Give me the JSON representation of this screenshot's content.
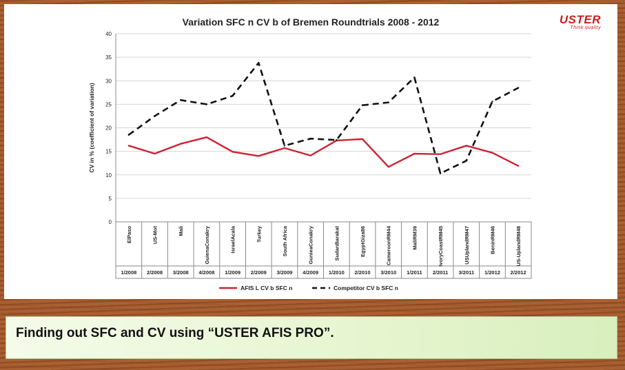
{
  "slide": {
    "caption": "Finding out SFC and CV using “USTER AFIS PRO”.",
    "logo": {
      "word": "USTER",
      "tagline": "Think quality",
      "color": "#cc1f1f"
    }
  },
  "chart_data": {
    "type": "line",
    "title": "Variation SFC n  CV b of Bremen Roundtrials 2008 - 2012",
    "ylabel": "CV in % (coefficient of variation)",
    "xlabel": "",
    "ylim": [
      0,
      40
    ],
    "yticks": [
      0,
      5,
      10,
      15,
      20,
      25,
      30,
      35,
      40
    ],
    "grid": true,
    "legend_position": "bottom",
    "categories": [
      "ElPaso",
      "US-Mot",
      "Mali",
      "GuienaConakry",
      "IsraelAcala",
      "Turkey",
      "South Africa",
      "GunieaConakry",
      "SudanBarakat",
      "EgyptGiza86",
      "CameroonRM44",
      "MaliRM39",
      "IvoryCoastRM45",
      "USUplandRM47",
      "BeninRM46",
      "US-UplandRM48"
    ],
    "periods": [
      "1/2008",
      "2/2008",
      "3/2008",
      "4/2008",
      "1/2009",
      "2/2009",
      "3/2009",
      "4/2009",
      "1/2010",
      "2/2010",
      "3/2010",
      "1/2011",
      "2/2011",
      "3/2011",
      "1/2012",
      "2/2012"
    ],
    "series": [
      {
        "name": "AFIS L CV b  SFC n",
        "color": "#cc2233",
        "dash": "solid",
        "values": [
          16.2,
          14.5,
          16.6,
          18.0,
          14.9,
          14.0,
          15.7,
          14.1,
          17.3,
          17.6,
          11.7,
          14.5,
          14.4,
          16.2,
          14.7,
          11.9
        ]
      },
      {
        "name": "Competitor CV b  SFC n",
        "color": "#111111",
        "dash": "dashed",
        "values": [
          18.5,
          22.5,
          25.9,
          25.0,
          26.8,
          33.8,
          16.2,
          17.7,
          17.4,
          24.8,
          25.4,
          30.7,
          10.3,
          13.0,
          25.6,
          28.5
        ]
      }
    ]
  }
}
